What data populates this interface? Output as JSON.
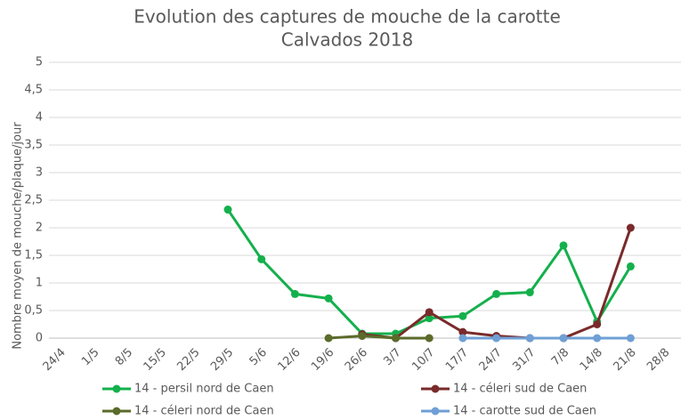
{
  "chart_data": {
    "type": "line",
    "title": "Evolution des captures de mouche de la carotte",
    "subtitle": "Calvados 2018",
    "y_label": "Nombre moyen de mouche/plaque/jour",
    "categories": [
      "24/4",
      "1/5",
      "8/5",
      "15/5",
      "22/5",
      "29/5",
      "5/6",
      "12/6",
      "19/6",
      "26/6",
      "3/7",
      "10/7",
      "17/7",
      "24/7",
      "31/7",
      "7/8",
      "14/8",
      "21/8",
      "28/8"
    ],
    "series": [
      {
        "name": "14 - persil nord de Caen",
        "color": "#14b04c",
        "values": [
          null,
          null,
          null,
          null,
          null,
          2.33,
          1.43,
          0.8,
          0.72,
          0.08,
          0.08,
          0.36,
          0.4,
          0.8,
          0.83,
          1.68,
          0.3,
          1.3,
          null
        ]
      },
      {
        "name": "14 - céleri sud de Caen",
        "color": "#7a2a2a",
        "values": [
          null,
          null,
          null,
          null,
          null,
          null,
          null,
          null,
          null,
          0.07,
          0,
          0.47,
          0.11,
          0.04,
          0,
          0,
          0.25,
          2.0,
          null
        ]
      },
      {
        "name": "14 - céleri nord de Caen",
        "color": "#5b6b2a",
        "values": [
          null,
          null,
          null,
          null,
          null,
          null,
          null,
          null,
          0,
          0.04,
          0,
          0,
          null,
          null,
          null,
          null,
          null,
          null,
          null
        ]
      },
      {
        "name": "14 - carotte sud de Caen",
        "color": "#6f9fd6",
        "values": [
          null,
          null,
          null,
          null,
          null,
          null,
          null,
          null,
          null,
          null,
          null,
          null,
          0,
          0,
          0,
          0,
          0,
          0,
          null
        ]
      }
    ],
    "ylim": [
      0,
      5
    ],
    "yticks": [
      0,
      {
        "value": 0.5,
        "label": "0,5"
      },
      1,
      {
        "value": 1.5,
        "label": "1,5"
      },
      2,
      {
        "value": 2.5,
        "label": "2,5"
      },
      3,
      {
        "value": 3.5,
        "label": "3,5"
      },
      4,
      {
        "value": 4.5,
        "label": "4,5"
      },
      5
    ],
    "grid": true
  }
}
